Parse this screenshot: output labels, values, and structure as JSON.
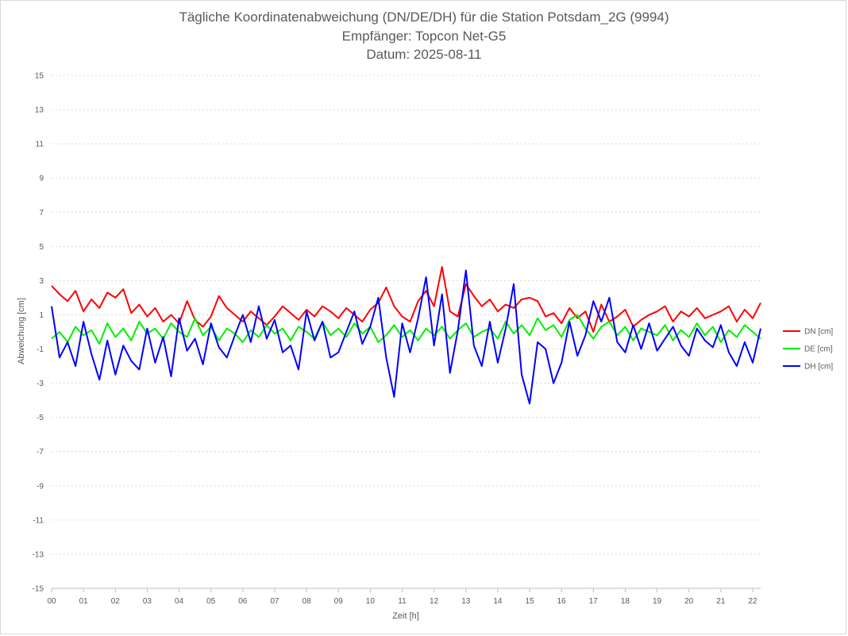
{
  "chart_data": {
    "type": "line",
    "title": "Tägliche Koordinatenabweichung (DN/DE/DH) für die Station Potsdam_2G (9994)",
    "subtitle_receiver": "Empfänger: Topcon Net-G5",
    "subtitle_date": "Datum: 2025-08-11",
    "xlabel": "Zeit [h]",
    "ylabel": "Abweichung [cm]",
    "xlim": [
      0,
      22.25
    ],
    "ylim": [
      -15,
      15
    ],
    "y_ticks": [
      "15",
      "13",
      "11",
      "9",
      "7",
      "5",
      "3",
      "1",
      "-1",
      "-3",
      "-5",
      "-7",
      "-9",
      "-11",
      "-13",
      "-15"
    ],
    "x_ticks": [
      "00",
      "01",
      "02",
      "03",
      "04",
      "05",
      "06",
      "07",
      "08",
      "09",
      "10",
      "11",
      "12",
      "13",
      "14",
      "15",
      "16",
      "17",
      "18",
      "19",
      "20",
      "21",
      "22"
    ],
    "grid": true,
    "legend_position": "right",
    "x": [
      0.0,
      0.25,
      0.5,
      0.75,
      1.0,
      1.25,
      1.5,
      1.75,
      2.0,
      2.25,
      2.5,
      2.75,
      3.0,
      3.25,
      3.5,
      3.75,
      4.0,
      4.25,
      4.5,
      4.75,
      5.0,
      5.25,
      5.5,
      5.75,
      6.0,
      6.25,
      6.5,
      6.75,
      7.0,
      7.25,
      7.5,
      7.75,
      8.0,
      8.25,
      8.5,
      8.75,
      9.0,
      9.25,
      9.5,
      9.75,
      10.0,
      10.25,
      10.5,
      10.75,
      11.0,
      11.25,
      11.5,
      11.75,
      12.0,
      12.25,
      12.5,
      12.75,
      13.0,
      13.25,
      13.5,
      13.75,
      14.0,
      14.25,
      14.5,
      14.75,
      15.0,
      15.25,
      15.5,
      15.75,
      16.0,
      16.25,
      16.5,
      16.75,
      17.0,
      17.25,
      17.5,
      17.75,
      18.0,
      18.25,
      18.5,
      18.75,
      19.0,
      19.25,
      19.5,
      19.75,
      20.0,
      20.25,
      20.5,
      20.75,
      21.0,
      21.25,
      21.5,
      21.75,
      22.0,
      22.25
    ],
    "series": [
      {
        "name": "DN [cm]",
        "color": "#ff0000",
        "values": [
          2.7,
          2.2,
          1.8,
          2.4,
          1.2,
          1.9,
          1.4,
          2.3,
          2.0,
          2.5,
          1.1,
          1.6,
          0.9,
          1.4,
          0.6,
          1.0,
          0.5,
          1.8,
          0.7,
          0.3,
          0.9,
          2.1,
          1.4,
          1.0,
          0.6,
          1.2,
          0.8,
          0.4,
          0.9,
          1.5,
          1.1,
          0.7,
          1.3,
          0.9,
          1.5,
          1.2,
          0.8,
          1.4,
          1.0,
          0.6,
          1.3,
          1.7,
          2.6,
          1.5,
          0.9,
          0.6,
          1.8,
          2.4,
          1.5,
          3.8,
          1.2,
          0.9,
          2.8,
          2.1,
          1.5,
          1.9,
          1.2,
          1.6,
          1.4,
          1.9,
          2.0,
          1.8,
          0.9,
          1.1,
          0.5,
          1.4,
          0.8,
          1.2,
          0.0,
          1.6,
          0.6,
          0.9,
          1.3,
          0.3,
          0.7,
          1.0,
          1.2,
          1.5,
          0.6,
          1.2,
          0.9,
          1.4,
          0.8,
          1.0,
          1.2,
          1.5,
          0.6,
          1.3,
          0.8,
          1.7
        ]
      },
      {
        "name": "DE [cm]",
        "color": "#00ee00",
        "values": [
          -0.4,
          0.0,
          -0.6,
          0.3,
          -0.2,
          0.1,
          -0.7,
          0.5,
          -0.3,
          0.2,
          -0.5,
          0.6,
          -0.1,
          0.2,
          -0.4,
          0.5,
          0.0,
          -0.3,
          0.8,
          -0.2,
          0.3,
          -0.5,
          0.2,
          -0.1,
          -0.6,
          0.1,
          -0.3,
          0.4,
          -0.1,
          0.2,
          -0.5,
          0.3,
          0.0,
          -0.4,
          0.6,
          -0.2,
          0.2,
          -0.3,
          0.5,
          -0.1,
          0.3,
          -0.6,
          -0.2,
          0.4,
          -0.3,
          0.1,
          -0.5,
          0.2,
          -0.2,
          0.3,
          -0.4,
          0.1,
          0.5,
          -0.3,
          0.0,
          0.2,
          -0.4,
          0.6,
          -0.1,
          0.4,
          -0.2,
          0.8,
          0.1,
          0.4,
          -0.3,
          0.7,
          1.0,
          0.2,
          -0.4,
          0.3,
          0.6,
          -0.2,
          0.3,
          -0.5,
          0.2,
          0.0,
          -0.2,
          0.4,
          -0.5,
          0.1,
          -0.3,
          0.5,
          -0.2,
          0.3,
          -0.6,
          0.1,
          -0.3,
          0.4,
          0.0,
          -0.4
        ]
      },
      {
        "name": "DH [cm]",
        "color": "#0000ff",
        "values": [
          1.5,
          -1.5,
          -0.6,
          -2.0,
          0.6,
          -1.3,
          -2.8,
          -0.5,
          -2.5,
          -0.8,
          -1.7,
          -2.2,
          0.2,
          -1.8,
          -0.3,
          -2.6,
          0.8,
          -1.1,
          -0.4,
          -1.9,
          0.5,
          -0.9,
          -1.5,
          -0.2,
          1.0,
          -0.6,
          1.5,
          -0.4,
          0.7,
          -1.2,
          -0.8,
          -2.2,
          1.2,
          -0.5,
          0.6,
          -1.5,
          -1.2,
          0.0,
          1.2,
          -0.7,
          0.3,
          2.0,
          -1.5,
          -3.8,
          0.5,
          -1.2,
          0.8,
          3.2,
          -0.8,
          2.2,
          -2.4,
          0.1,
          3.6,
          -0.8,
          -2.0,
          0.6,
          -1.8,
          0.2,
          2.8,
          -2.5,
          -4.2,
          -0.6,
          -1.0,
          -3.0,
          -1.8,
          0.6,
          -1.4,
          -0.2,
          1.8,
          0.6,
          2.0,
          -0.6,
          -1.2,
          0.4,
          -1.0,
          0.5,
          -1.1,
          -0.4,
          0.3,
          -0.8,
          -1.4,
          0.2,
          -0.5,
          -0.9,
          0.4,
          -1.2,
          -2.0,
          -0.6,
          -1.8,
          0.2
        ]
      }
    ]
  }
}
